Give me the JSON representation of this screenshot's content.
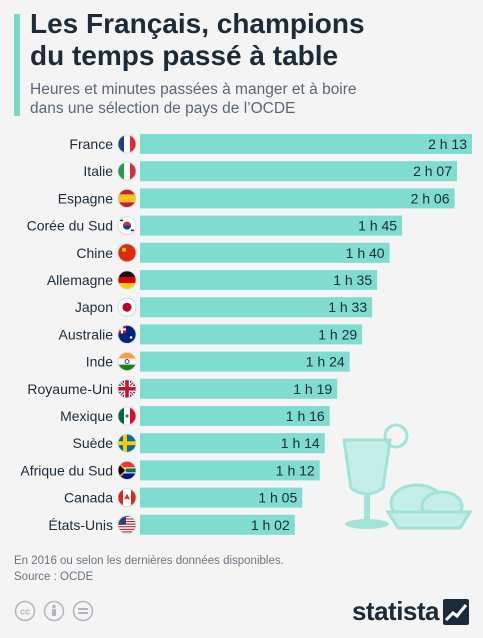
{
  "header": {
    "title_line1": "Les Français, champions",
    "title_line2": "du temps passé à table",
    "subtitle_line1": "Heures et minutes passées à manger et à boire",
    "subtitle_line2": "dans une sélection de pays de l’OCDE"
  },
  "chart_data": {
    "type": "bar",
    "orientation": "horizontal",
    "categories": [
      "France",
      "Italie",
      "Espagne",
      "Corée du Sud",
      "Chine",
      "Allemagne",
      "Japon",
      "Australie",
      "Inde",
      "Royaume-Uni",
      "Mexique",
      "Suède",
      "Afrique du Sud",
      "Canada",
      "États-Unis"
    ],
    "values_minutes": [
      133,
      127,
      126,
      105,
      100,
      95,
      93,
      89,
      84,
      79,
      76,
      74,
      72,
      65,
      62
    ],
    "labels": [
      "2 h 13",
      "2 h 07",
      "2 h 06",
      "1 h 45",
      "1 h 40",
      "1 h 35",
      "1 h 33",
      "1 h 29",
      "1 h 24",
      "1 h 19",
      "1 h 16",
      "1 h 14",
      "1 h 12",
      "1 h 05",
      "1 h 02"
    ],
    "flags": [
      "flag-france-icon",
      "flag-italy-icon",
      "flag-spain-icon",
      "flag-south-korea-icon",
      "flag-china-icon",
      "flag-germany-icon",
      "flag-japan-icon",
      "flag-australia-icon",
      "flag-india-icon",
      "flag-uk-icon",
      "flag-mexico-icon",
      "flag-sweden-icon",
      "flag-south-africa-icon",
      "flag-canada-icon",
      "flag-usa-icon"
    ],
    "bar_color": "#7fdcd0",
    "illustration": "glass-and-food-icon"
  },
  "footer": {
    "note": "En 2016 ou selon les dernières données disponibles.",
    "source": "Source : OCDE",
    "brand": "statista"
  },
  "colors": {
    "accent": "#79d9cc",
    "text_dark": "#1c2b39",
    "background": "#f4f4f4"
  }
}
